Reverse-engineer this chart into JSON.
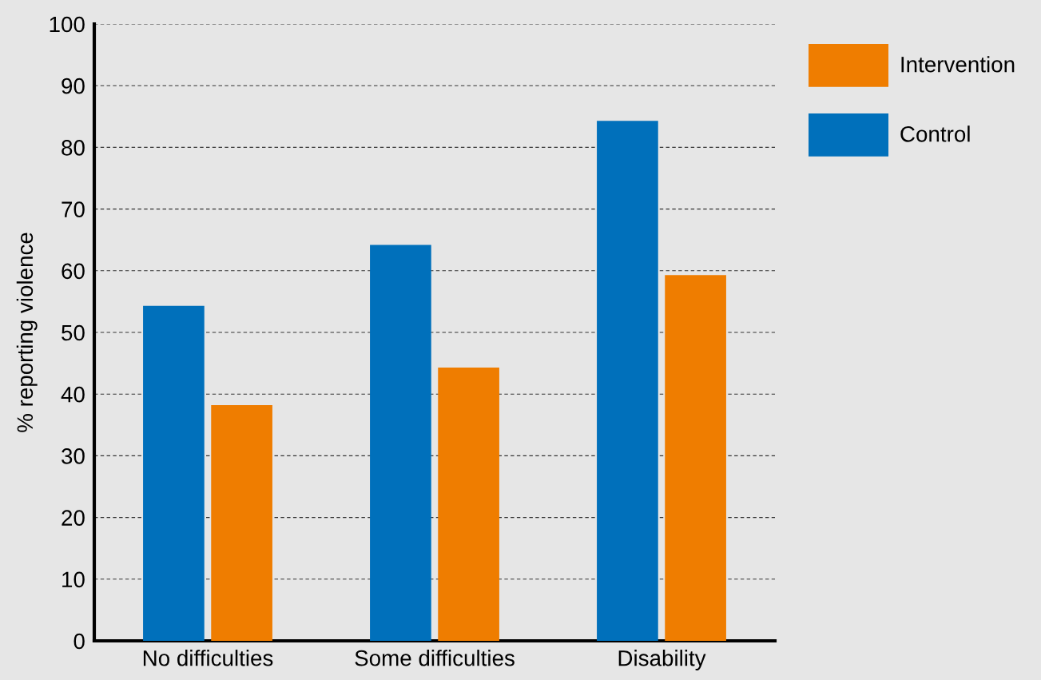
{
  "chart_data": {
    "type": "bar",
    "ylabel": "% reporting violence",
    "categories": [
      "No difficulties",
      "Some difficulties",
      "Disability"
    ],
    "series": [
      {
        "name": "Control",
        "color": "#0070bb",
        "values": [
          54.3,
          64.2,
          84.3
        ]
      },
      {
        "name": "Intervention",
        "color": "#ef7d00",
        "values": [
          38.2,
          44.3,
          59.3
        ]
      }
    ],
    "ylim": [
      0,
      100
    ],
    "yticks": [
      0,
      10,
      20,
      30,
      40,
      50,
      60,
      70,
      80,
      90,
      100
    ],
    "grid": "y",
    "legend": "top right"
  }
}
